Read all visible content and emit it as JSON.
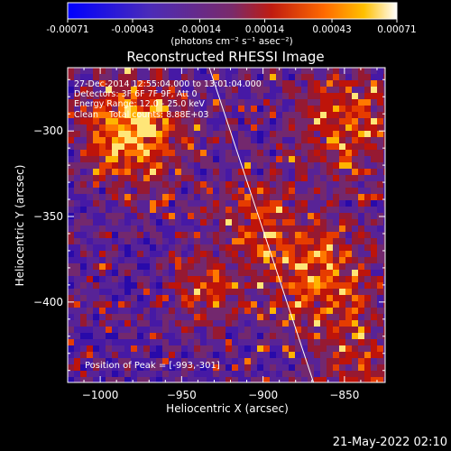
{
  "chart_data": {
    "type": "heatmap",
    "title": "Reconstructed RHESSI Image",
    "xlabel": "Heliocentric X (arcsec)",
    "ylabel": "Heliocentric Y (arcsec)",
    "xlim": [
      -1020,
      -825
    ],
    "ylim": [
      -447,
      -263
    ],
    "x_ticks": [
      -1000,
      -950,
      -900,
      -850
    ],
    "x_tick_labels": [
      "−1000",
      "−950",
      "−900",
      "−850"
    ],
    "y_ticks": [
      -300,
      -350,
      -400
    ],
    "y_tick_labels": [
      "−300",
      "−350",
      "−400"
    ],
    "colorbar": {
      "range": [
        -0.00071,
        0.00071
      ],
      "ticks": [
        -0.00071,
        -0.00043,
        -0.00014,
        0.00014,
        0.00043,
        0.00071
      ],
      "tick_labels": [
        "-0.00071",
        "-0.00043",
        "-0.00014",
        "0.00014",
        "0.00043",
        "0.00071"
      ],
      "units_label": "(photons cm⁻² s⁻¹ asec⁻²)"
    },
    "annotations": [
      "27-Dec-2014 12:55:04.000 to 13:01:04.000",
      "Detectors: 3F 6F 7F 9F, Att 0",
      "Energy Range: 12.0 - 25.0 keV",
      "Clean    Total counts: 8.88E+03"
    ],
    "peak_label": "Position of Peak = [-993,-301]",
    "peak_position": [
      -993,
      -301
    ],
    "limb_line": [
      [
        -933,
        -263
      ],
      [
        -869,
        -447
      ]
    ],
    "footer_date": "21-May-2022 02:10"
  }
}
